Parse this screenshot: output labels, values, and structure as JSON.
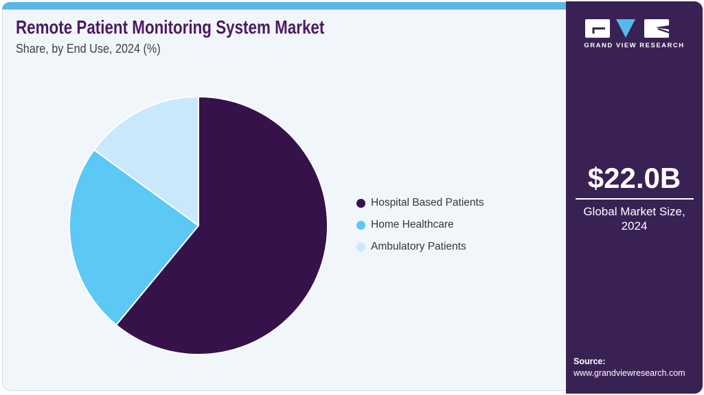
{
  "header": {
    "title": "Remote Patient Monitoring System Market",
    "subtitle": "Share, by End Use, 2024 (%)"
  },
  "chart_data": {
    "type": "pie",
    "title": "Remote Patient Monitoring System Market Share, by End Use, 2024 (%)",
    "categories": [
      "Hospital Based Patients",
      "Home Healthcare",
      "Ambulatory Patients"
    ],
    "values": [
      61,
      24,
      15
    ],
    "unit": "%",
    "colors": [
      "#36124a",
      "#5bc8f5",
      "#c9e8fb"
    ],
    "start_angle_deg": 0,
    "direction": "clockwise",
    "legend_position": "right",
    "slice_border_color": "#ffffff"
  },
  "sidebar": {
    "brand": {
      "wordmark": "GRAND VIEW RESEARCH"
    },
    "market_size": {
      "value": "$22.0B",
      "caption": "Global Market Size, 2024"
    },
    "source": {
      "label": "Source:",
      "url": "www.grandviewresearch.com"
    }
  },
  "theme": {
    "accent_strip": "#5bb7e8",
    "card_background": "#f1f6fb",
    "sidebar_background": "#3a2154",
    "title_color": "#4b1a63"
  }
}
